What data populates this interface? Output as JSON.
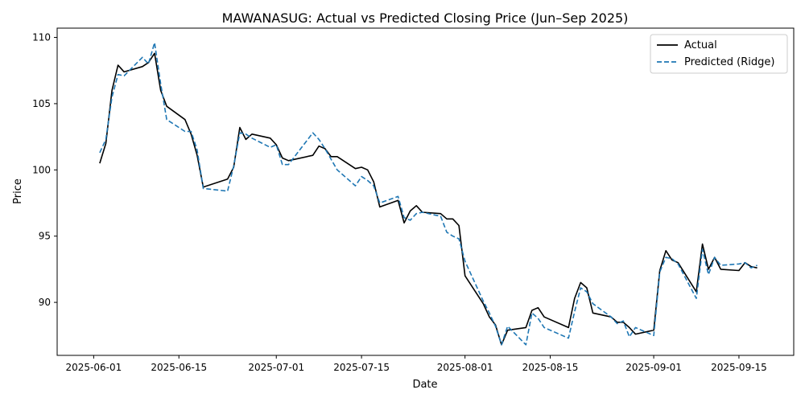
{
  "chart_data": {
    "type": "line",
    "title": "MAWANASUG: Actual vs Predicted Closing Price (Jun–Sep 2025)",
    "xlabel": "Date",
    "ylabel": "Price",
    "xlim": [
      "2025-05-26",
      "2025-09-24"
    ],
    "ylim": [
      86.0,
      110.7
    ],
    "x_ticks": [
      "2025-06-01",
      "2025-06-15",
      "2025-07-01",
      "2025-07-15",
      "2025-08-01",
      "2025-08-15",
      "2025-09-01",
      "2025-09-15"
    ],
    "y_ticks": [
      90,
      95,
      100,
      105,
      110
    ],
    "legend_position": "top-right",
    "grid": false,
    "x": [
      "2025-06-02",
      "2025-06-03",
      "2025-06-04",
      "2025-06-05",
      "2025-06-06",
      "2025-06-09",
      "2025-06-10",
      "2025-06-11",
      "2025-06-12",
      "2025-06-13",
      "2025-06-16",
      "2025-06-17",
      "2025-06-18",
      "2025-06-19",
      "2025-06-23",
      "2025-06-24",
      "2025-06-25",
      "2025-06-26",
      "2025-06-27",
      "2025-06-30",
      "2025-07-01",
      "2025-07-02",
      "2025-07-03",
      "2025-07-07",
      "2025-07-08",
      "2025-07-09",
      "2025-07-10",
      "2025-07-11",
      "2025-07-14",
      "2025-07-15",
      "2025-07-16",
      "2025-07-17",
      "2025-07-18",
      "2025-07-21",
      "2025-07-22",
      "2025-07-23",
      "2025-07-24",
      "2025-07-25",
      "2025-07-28",
      "2025-07-29",
      "2025-07-30",
      "2025-07-31",
      "2025-08-01",
      "2025-08-04",
      "2025-08-05",
      "2025-08-06",
      "2025-08-07",
      "2025-08-08",
      "2025-08-11",
      "2025-08-12",
      "2025-08-13",
      "2025-08-14",
      "2025-08-18",
      "2025-08-19",
      "2025-08-20",
      "2025-08-21",
      "2025-08-22",
      "2025-08-25",
      "2025-08-26",
      "2025-08-27",
      "2025-08-28",
      "2025-08-29",
      "2025-09-01",
      "2025-09-02",
      "2025-09-03",
      "2025-09-04",
      "2025-09-05",
      "2025-09-08",
      "2025-09-09",
      "2025-09-10",
      "2025-09-11",
      "2025-09-12",
      "2025-09-15",
      "2025-09-16",
      "2025-09-17",
      "2025-09-18"
    ],
    "series": [
      {
        "name": "Actual",
        "color": "#000000",
        "style": "solid",
        "values": [
          100.5,
          102.0,
          106.0,
          107.9,
          107.4,
          107.8,
          108.1,
          108.8,
          106.0,
          104.8,
          103.8,
          102.7,
          101.1,
          98.7,
          99.3,
          100.2,
          103.2,
          102.3,
          102.7,
          102.4,
          101.9,
          100.9,
          100.7,
          101.1,
          101.8,
          101.6,
          101.0,
          101.0,
          100.1,
          100.2,
          100.0,
          99.1,
          97.2,
          97.7,
          96.0,
          96.9,
          97.3,
          96.8,
          96.7,
          96.3,
          96.3,
          95.8,
          92.0,
          89.9,
          88.9,
          88.3,
          86.8,
          87.9,
          88.1,
          89.4,
          89.6,
          88.9,
          88.1,
          90.3,
          91.5,
          91.1,
          89.2,
          88.9,
          88.5,
          88.5,
          88.1,
          87.6,
          87.9,
          92.4,
          93.9,
          93.2,
          93.0,
          90.8,
          94.4,
          92.5,
          93.4,
          92.5,
          92.4,
          93.0,
          92.7,
          92.6
        ]
      },
      {
        "name": "Predicted (Ridge)",
        "color": "#1f77b4",
        "style": "dashed",
        "values": [
          101.3,
          102.3,
          105.5,
          107.2,
          107.1,
          108.5,
          108.0,
          109.6,
          106.5,
          103.8,
          102.9,
          102.9,
          101.5,
          98.6,
          98.4,
          100.3,
          102.8,
          102.7,
          102.4,
          101.7,
          101.9,
          100.4,
          100.4,
          102.8,
          102.3,
          101.6,
          100.8,
          100.0,
          98.8,
          99.5,
          99.2,
          98.8,
          97.5,
          98.0,
          96.4,
          96.2,
          96.7,
          96.8,
          96.5,
          95.3,
          95.0,
          94.8,
          93.1,
          90.1,
          89.2,
          88.2,
          86.8,
          88.2,
          86.8,
          89.2,
          88.8,
          88.1,
          87.3,
          89.3,
          91.1,
          90.8,
          89.9,
          88.9,
          88.4,
          88.6,
          87.4,
          88.1,
          87.5,
          92.3,
          93.4,
          93.3,
          92.9,
          90.3,
          94.0,
          92.1,
          93.4,
          92.8,
          92.9,
          93.0,
          92.6,
          92.8
        ]
      }
    ]
  }
}
